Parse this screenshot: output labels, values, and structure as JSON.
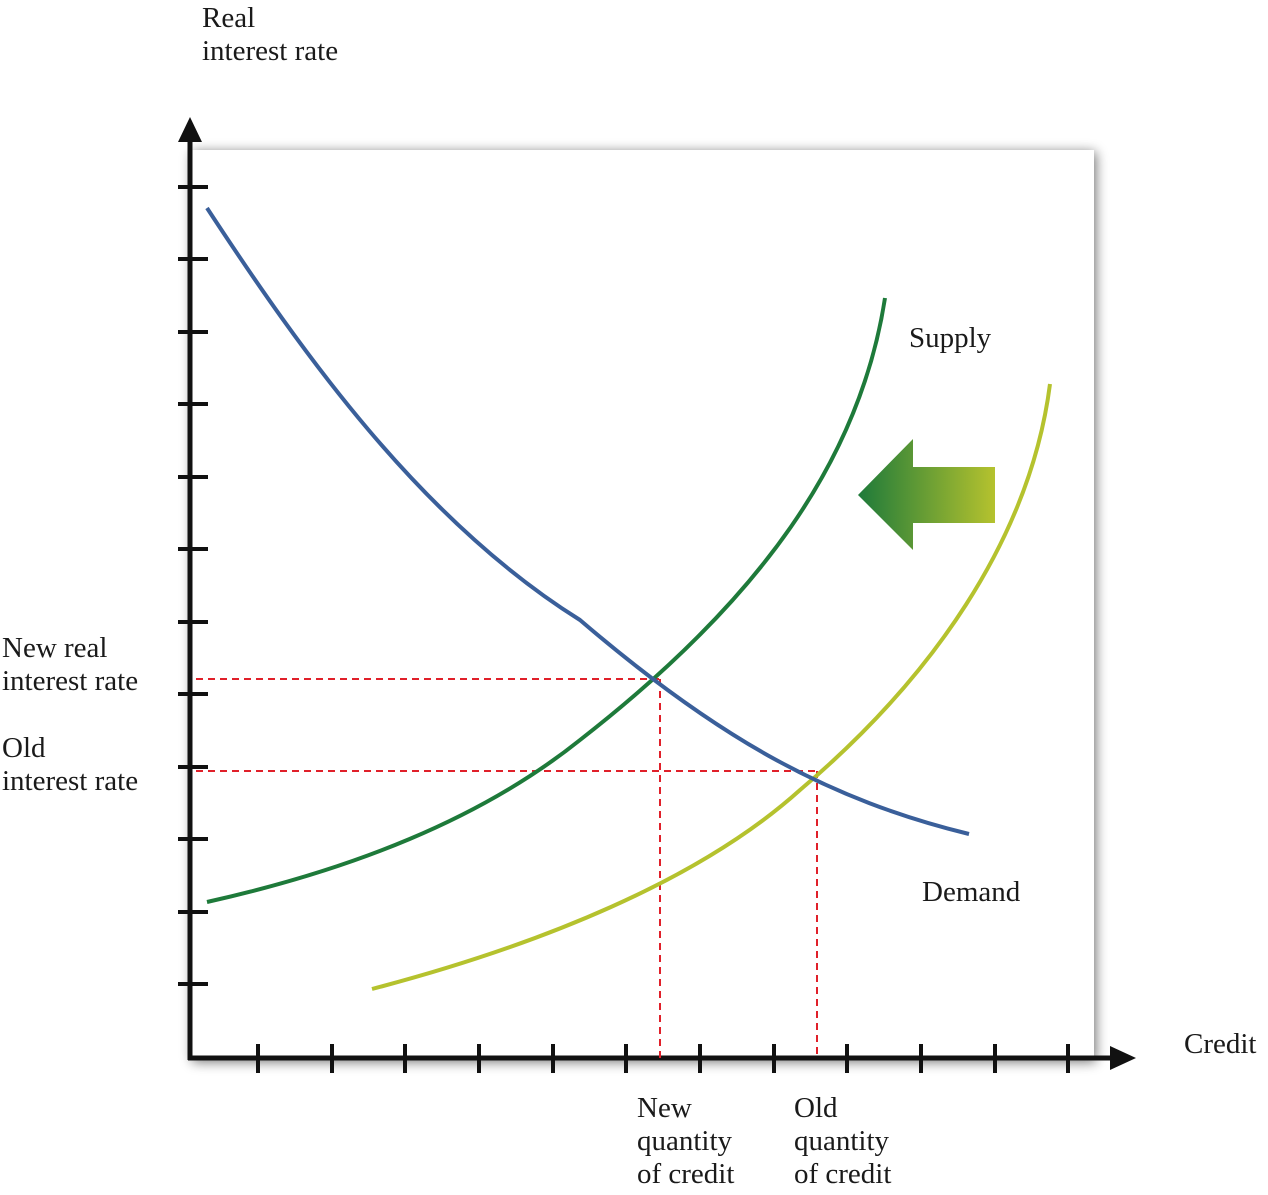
{
  "diagram": {
    "axes": {
      "y_title": [
        "Real",
        "interest rate"
      ],
      "x_title": "Credit"
    },
    "y_ticks": {
      "new_rate": [
        "New real",
        "interest rate"
      ],
      "old_rate": [
        "Old",
        "interest rate"
      ]
    },
    "x_ticks": {
      "new_quantity": [
        "New",
        "quantity",
        "of credit"
      ],
      "old_quantity": [
        "Old",
        "quantity",
        "of credit"
      ]
    },
    "curves": {
      "supply": {
        "label": "Supply",
        "color": "#1e7a3a"
      },
      "old_supply": {
        "label": "",
        "color": "#b5c22e"
      },
      "demand": {
        "label": "Demand",
        "color": "#3a5f9a"
      }
    },
    "shift_arrow": {
      "direction": "left",
      "from_color": "#b5c22e",
      "to_color": "#1e7a3a"
    },
    "guide_color": "#e0202a"
  }
}
